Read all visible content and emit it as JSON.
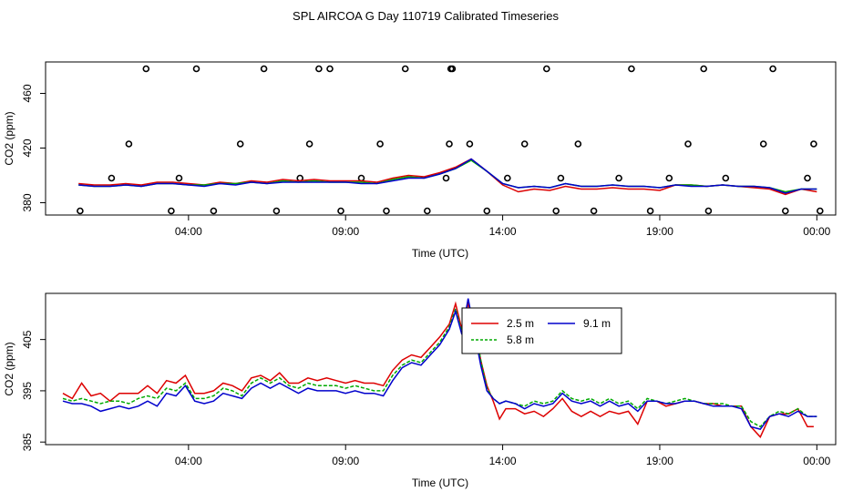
{
  "title": "SPL AIRCOA G  Day 110719  Calibrated Timeseries",
  "colors": {
    "h25": "#dd0000",
    "h58": "#00aa00",
    "h91": "#0000cc",
    "axis": "#000000"
  },
  "chart_data": [
    {
      "type": "line",
      "xlabel": "Time (UTC)",
      "ylabel": "CO2 (ppm)",
      "x_unit": "hours UTC, day 110719 (24 = next-day 00:00)",
      "xlim": [
        -0.55,
        24.6
      ],
      "ylim": [
        371,
        483
      ],
      "xticks": [
        4,
        9,
        14,
        19,
        24
      ],
      "xtick_labels": [
        "04:00",
        "09:00",
        "14:00",
        "19:00",
        "00:00"
      ],
      "yticks": [
        380,
        420,
        460
      ],
      "ytick_labels": [
        "380",
        "420",
        "460"
      ],
      "series": [
        {
          "name": "2.5 m",
          "color": "#dd0000",
          "x": [
            0.5,
            1,
            1.5,
            2,
            2.5,
            3,
            3.5,
            4,
            4.5,
            5,
            5.5,
            6,
            6.5,
            7,
            7.5,
            8,
            8.5,
            9,
            9.5,
            10,
            10.5,
            11,
            11.5,
            12,
            12.5,
            13,
            13.5,
            14,
            14.5,
            15,
            15.5,
            16,
            16.5,
            17,
            17.5,
            18,
            18.5,
            19,
            19.5,
            20,
            20.5,
            21,
            21.5,
            22,
            22.5,
            23,
            23.5,
            24
          ],
          "y": [
            394,
            393,
            393,
            394,
            393,
            395,
            395,
            394,
            393,
            395,
            394,
            396,
            395,
            397,
            396,
            397,
            396,
            396,
            396,
            395,
            398,
            400,
            399,
            402,
            406,
            412,
            403,
            393,
            388,
            390,
            389,
            392,
            390,
            390,
            391,
            390,
            390,
            389,
            393,
            393,
            392,
            393,
            392,
            391,
            390,
            386,
            390,
            388
          ]
        },
        {
          "name": "5.8 m",
          "color": "#00aa00",
          "x": [
            0.5,
            1,
            1.5,
            2,
            2.5,
            3,
            3.5,
            4,
            4.5,
            5,
            5.5,
            6,
            6.5,
            7,
            7.5,
            8,
            8.5,
            9,
            9.5,
            10,
            10.5,
            11,
            11.5,
            12,
            12.5,
            13,
            13.5,
            14,
            14.5,
            15,
            15.5,
            16,
            16.5,
            17,
            17.5,
            18,
            18.5,
            19,
            19.5,
            20,
            20.5,
            21,
            21.5,
            22,
            22.5,
            23,
            23.5,
            24
          ],
          "y": [
            393,
            392,
            392,
            393,
            392,
            394,
            394,
            393,
            393,
            394,
            394,
            395,
            394,
            396,
            395,
            396,
            395,
            395,
            395,
            394,
            397,
            399,
            398,
            401,
            405,
            411,
            403,
            394,
            391,
            392,
            391,
            394,
            392,
            392,
            393,
            392,
            392,
            391,
            393,
            393,
            392,
            393,
            392,
            392,
            391,
            388,
            390,
            390
          ]
        },
        {
          "name": "9.1 m",
          "color": "#0000cc",
          "x": [
            0.5,
            1,
            1.5,
            2,
            2.5,
            3,
            3.5,
            4,
            4.5,
            5,
            5.5,
            6,
            6.5,
            7,
            7.5,
            8,
            8.5,
            9,
            9.5,
            10,
            10.5,
            11,
            11.5,
            12,
            12.5,
            13,
            13.5,
            14,
            14.5,
            15,
            15.5,
            16,
            16.5,
            17,
            17.5,
            18,
            18.5,
            19,
            19.5,
            20,
            20.5,
            21,
            21.5,
            22,
            22.5,
            23,
            23.5,
            24
          ],
          "y": [
            393,
            392,
            392,
            393,
            392,
            394,
            394,
            393,
            392,
            394,
            393,
            395,
            394,
            395,
            395,
            395,
            395,
            395,
            394,
            394,
            396,
            398,
            398,
            401,
            405,
            412,
            403,
            394,
            391,
            392,
            391,
            394,
            392,
            392,
            393,
            392,
            392,
            391,
            393,
            392,
            392,
            393,
            392,
            392,
            391,
            387,
            390,
            390
          ]
        }
      ],
      "markers": {
        "shape": "open circle",
        "x": [
          0.55,
          1.55,
          2.1,
          2.65,
          3.45,
          3.7,
          4.25,
          4.8,
          5.65,
          6.4,
          6.8,
          7.55,
          7.85,
          8.15,
          8.5,
          8.85,
          9.5,
          10.1,
          10.3,
          10.9,
          11.6,
          12.2,
          12.3,
          12.35,
          12.4,
          12.95,
          13.5,
          14.15,
          14.7,
          15.4,
          15.7,
          15.85,
          16.4,
          16.9,
          17.7,
          18.1,
          18.7,
          19.3,
          19.9,
          20.4,
          20.55,
          21.1,
          22.3,
          22.6,
          23.0,
          23.7,
          23.9,
          24.1
        ],
        "y": [
          374,
          398,
          423,
          478,
          374,
          398,
          478,
          374,
          423,
          478,
          374,
          398,
          423,
          478,
          478,
          374,
          398,
          423,
          374,
          478,
          374,
          398,
          423,
          478,
          478,
          423,
          374,
          398,
          423,
          478,
          374,
          398,
          423,
          374,
          398,
          478,
          374,
          398,
          423,
          478,
          374,
          398,
          423,
          478,
          374,
          398,
          423,
          374
        ]
      }
    },
    {
      "type": "line",
      "xlabel": "Time (UTC)",
      "ylabel": "CO2 (ppm)",
      "x_unit": "hours UTC, day 110719 (24 = next-day 00:00)",
      "xlim": [
        -0.55,
        24.6
      ],
      "ylim": [
        384.5,
        414
      ],
      "xticks": [
        4,
        9,
        14,
        19,
        24
      ],
      "xtick_labels": [
        "04:00",
        "09:00",
        "14:00",
        "19:00",
        "00:00"
      ],
      "yticks": [
        385,
        395,
        405
      ],
      "ytick_labels": [
        "385",
        "395",
        "405"
      ],
      "series": [
        {
          "name": "2.5 m",
          "color": "#dd0000",
          "x": [
            0,
            0.3,
            0.6,
            0.9,
            1.2,
            1.5,
            1.8,
            2.1,
            2.4,
            2.7,
            3.0,
            3.3,
            3.6,
            3.9,
            4.2,
            4.5,
            4.8,
            5.1,
            5.4,
            5.7,
            6.0,
            6.3,
            6.6,
            6.9,
            7.2,
            7.5,
            7.8,
            8.1,
            8.4,
            8.7,
            9.0,
            9.3,
            9.6,
            9.9,
            10.2,
            10.5,
            10.8,
            11.1,
            11.4,
            11.7,
            12.0,
            12.3,
            12.5,
            12.7,
            12.9,
            13.1,
            13.3,
            13.5,
            13.7,
            13.9,
            14.1,
            14.4,
            14.7,
            15.0,
            15.3,
            15.6,
            15.9,
            16.2,
            16.5,
            16.8,
            17.1,
            17.4,
            17.7,
            18.0,
            18.3,
            18.6,
            18.9,
            19.2,
            19.5,
            19.8,
            20.1,
            20.4,
            20.7,
            21.0,
            21.3,
            21.6,
            21.9,
            22.2,
            22.5,
            22.8,
            23.1,
            23.4,
            23.7,
            23.9
          ],
          "y": [
            394.5,
            393.5,
            396.5,
            394,
            394.5,
            393,
            394.5,
            394.5,
            394.5,
            396,
            394.5,
            397,
            396.5,
            398,
            394.5,
            394.5,
            395,
            396.5,
            396,
            395,
            397.5,
            398,
            397,
            398.5,
            396.5,
            396.5,
            397.5,
            397,
            397.5,
            397,
            396.5,
            397,
            396.5,
            396.5,
            396,
            399,
            401,
            402,
            401.5,
            403.5,
            405.5,
            408,
            412,
            407,
            412,
            408,
            401,
            396,
            393,
            389.5,
            391.5,
            391.5,
            390.5,
            391,
            390,
            391.5,
            393.5,
            391,
            390,
            391,
            390,
            391,
            390.5,
            391,
            388.5,
            393,
            393,
            392,
            392.5,
            393,
            393,
            392.5,
            392.5,
            392,
            392,
            392,
            388,
            386,
            390,
            390.5,
            390.5,
            391.5,
            388,
            388
          ]
        },
        {
          "name": "5.8 m",
          "color": "#00aa00",
          "x": [
            0,
            0.3,
            0.6,
            0.9,
            1.2,
            1.5,
            1.8,
            2.1,
            2.4,
            2.7,
            3.0,
            3.3,
            3.6,
            3.9,
            4.2,
            4.5,
            4.8,
            5.1,
            5.4,
            5.7,
            6.0,
            6.3,
            6.6,
            6.9,
            7.2,
            7.5,
            7.8,
            8.1,
            8.4,
            8.7,
            9.0,
            9.3,
            9.6,
            9.9,
            10.2,
            10.5,
            10.8,
            11.1,
            11.4,
            11.7,
            12.0,
            12.3,
            12.5,
            12.7,
            12.9,
            13.1,
            13.3,
            13.5,
            13.7,
            13.9,
            14.1,
            14.4,
            14.7,
            15.0,
            15.3,
            15.6,
            15.9,
            16.2,
            16.5,
            16.8,
            17.1,
            17.4,
            17.7,
            18.0,
            18.3,
            18.6,
            18.9,
            19.2,
            19.5,
            19.8,
            20.1,
            20.4,
            20.7,
            21.0,
            21.3,
            21.6,
            21.9,
            22.2,
            22.5,
            22.8,
            23.1,
            23.4,
            23.7,
            24.0
          ],
          "y": [
            393.5,
            393,
            393.5,
            393,
            392.5,
            393,
            393,
            392.5,
            393.5,
            394,
            393.5,
            395.5,
            395,
            396.5,
            393.5,
            393.5,
            394,
            395.5,
            395,
            394,
            396.5,
            397.5,
            396.5,
            397.5,
            396,
            395.5,
            396.5,
            396,
            396,
            396,
            395.5,
            396,
            395.5,
            395,
            395,
            398,
            400,
            401,
            400.5,
            402.5,
            404.5,
            407.5,
            411,
            406.5,
            410.5,
            407.5,
            401,
            395.5,
            393.5,
            392.5,
            393,
            392.5,
            392,
            393,
            392.5,
            393,
            395,
            393.5,
            393,
            393.5,
            392.5,
            393.5,
            392.5,
            393,
            391.5,
            393.5,
            393,
            392.5,
            393,
            393.5,
            393,
            392.5,
            392.5,
            392.5,
            392,
            392,
            389,
            388,
            390,
            391,
            390.5,
            391.5,
            390,
            390
          ]
        },
        {
          "name": "9.1 m",
          "color": "#0000cc",
          "x": [
            0,
            0.3,
            0.6,
            0.9,
            1.2,
            1.5,
            1.8,
            2.1,
            2.4,
            2.7,
            3.0,
            3.3,
            3.6,
            3.9,
            4.2,
            4.5,
            4.8,
            5.1,
            5.4,
            5.7,
            6.0,
            6.3,
            6.6,
            6.9,
            7.2,
            7.5,
            7.8,
            8.1,
            8.4,
            8.7,
            9.0,
            9.3,
            9.6,
            9.9,
            10.2,
            10.5,
            10.8,
            11.1,
            11.4,
            11.7,
            12.0,
            12.3,
            12.5,
            12.7,
            12.9,
            13.1,
            13.3,
            13.5,
            13.7,
            13.9,
            14.1,
            14.4,
            14.7,
            15.0,
            15.3,
            15.6,
            15.9,
            16.2,
            16.5,
            16.8,
            17.1,
            17.4,
            17.7,
            18.0,
            18.3,
            18.6,
            18.9,
            19.2,
            19.5,
            19.8,
            20.1,
            20.4,
            20.7,
            21.0,
            21.3,
            21.6,
            21.9,
            22.2,
            22.5,
            22.8,
            23.1,
            23.4,
            23.7,
            24.0
          ],
          "y": [
            393,
            392.5,
            392.5,
            392,
            391,
            391.5,
            392,
            391.5,
            392,
            393,
            392,
            394.5,
            394,
            396,
            393,
            392.5,
            393,
            394.5,
            394,
            393.5,
            395.5,
            396.5,
            395.5,
            396.5,
            395.5,
            394.5,
            395.5,
            395,
            395,
            395,
            394.5,
            395,
            394.5,
            394.5,
            394,
            397,
            399.5,
            400.5,
            400,
            402,
            404,
            407,
            410.5,
            406,
            413,
            406.5,
            400,
            395,
            393.5,
            392.5,
            393,
            392.5,
            391.5,
            392.5,
            392,
            392.5,
            394.5,
            393,
            392.5,
            393,
            392,
            393,
            392,
            392.5,
            391,
            393,
            393,
            392.5,
            392.5,
            393,
            393,
            392.5,
            392,
            392,
            392,
            391.5,
            388,
            387.5,
            390,
            390.5,
            390,
            391,
            390,
            390
          ]
        }
      ],
      "legend": {
        "placement": "top-center",
        "entries": [
          "2.5 m",
          "9.1 m",
          "5.8 m"
        ]
      }
    }
  ]
}
